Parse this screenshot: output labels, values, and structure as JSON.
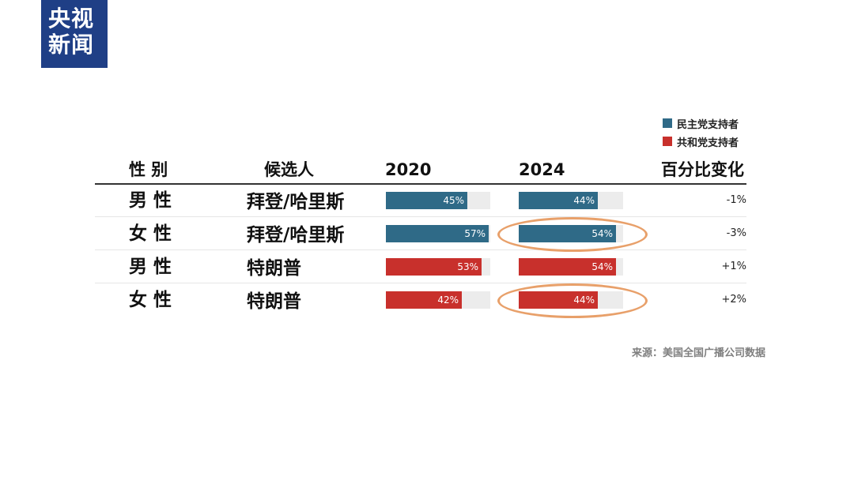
{
  "logo": {
    "line1": "央视",
    "line2": "新闻"
  },
  "legend": [
    {
      "label": "民主党支持者",
      "color": "#2f6a87"
    },
    {
      "label": "共和党支持者",
      "color": "#c8302c"
    }
  ],
  "headers": {
    "gender": "性 别",
    "candidate": "候选人",
    "y2020": "2020",
    "y2024": "2024",
    "change": "百分比变化"
  },
  "source": "来源：美国全国广播公司数据",
  "chart_data": {
    "type": "bar",
    "title": "",
    "xlabel": "",
    "ylabel": "",
    "ylim": [
      0,
      100
    ],
    "series_names": [
      "2020",
      "2024"
    ],
    "rows": [
      {
        "gender": "男 性",
        "candidate": "拜登/哈里斯",
        "party": "民主党支持者",
        "v2020": 45,
        "v2024": 44,
        "label2020": "45%",
        "label2024": "44%",
        "change": "-1%",
        "highlight2024": false
      },
      {
        "gender": "女 性",
        "candidate": "拜登/哈里斯",
        "party": "民主党支持者",
        "v2020": 57,
        "v2024": 54,
        "label2020": "57%",
        "label2024": "54%",
        "change": "-3%",
        "highlight2024": true
      },
      {
        "gender": "男 性",
        "candidate": "特朗普",
        "party": "共和党支持者",
        "v2020": 53,
        "v2024": 54,
        "label2020": "53%",
        "label2024": "54%",
        "change": "+1%",
        "highlight2024": false
      },
      {
        "gender": "女 性",
        "candidate": "特朗普",
        "party": "共和党支持者",
        "v2020": 42,
        "v2024": 44,
        "label2020": "42%",
        "label2024": "44%",
        "change": "+2%",
        "highlight2024": true
      }
    ]
  }
}
